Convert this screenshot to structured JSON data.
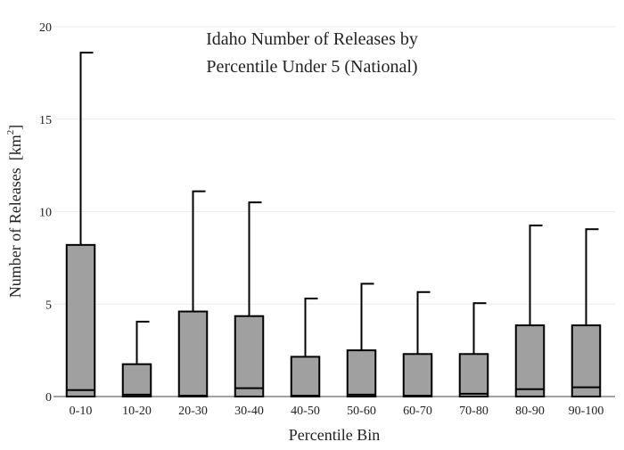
{
  "chart_data": {
    "type": "box",
    "title_lines": [
      "Idaho Number of Releases by",
      "Percentile Under 5 (National)"
    ],
    "xlabel": "Percentile Bin",
    "ylabel": "Number of Releases",
    "ylabel_unit_prefix": "[km",
    "ylabel_unit_sup": "2",
    "ylabel_unit_suffix": "]",
    "ylim": [
      0,
      20
    ],
    "yticks": [
      0,
      5,
      10,
      15,
      20
    ],
    "grid": true,
    "categories": [
      "0-10",
      "10-20",
      "20-30",
      "30-40",
      "40-50",
      "50-60",
      "60-70",
      "70-80",
      "80-90",
      "90-100"
    ],
    "boxes": [
      {
        "q1": 0,
        "median": 0.35,
        "q3": 8.2,
        "upper_whisker": 18.6
      },
      {
        "q1": 0,
        "median": 0.1,
        "q3": 1.75,
        "upper_whisker": 4.05
      },
      {
        "q1": 0,
        "median": 0.05,
        "q3": 4.6,
        "upper_whisker": 11.1
      },
      {
        "q1": 0,
        "median": 0.45,
        "q3": 4.35,
        "upper_whisker": 10.5
      },
      {
        "q1": 0,
        "median": 0.05,
        "q3": 2.15,
        "upper_whisker": 5.3
      },
      {
        "q1": 0,
        "median": 0.1,
        "q3": 2.5,
        "upper_whisker": 6.1
      },
      {
        "q1": 0,
        "median": 0.05,
        "q3": 2.3,
        "upper_whisker": 5.65
      },
      {
        "q1": 0,
        "median": 0.15,
        "q3": 2.3,
        "upper_whisker": 5.05
      },
      {
        "q1": 0,
        "median": 0.4,
        "q3": 3.85,
        "upper_whisker": 9.25
      },
      {
        "q1": 0,
        "median": 0.5,
        "q3": 3.85,
        "upper_whisker": 9.05
      }
    ],
    "box_fill": "#a0a0a0",
    "line_color": "#000000",
    "grid_color": "#ececec"
  }
}
